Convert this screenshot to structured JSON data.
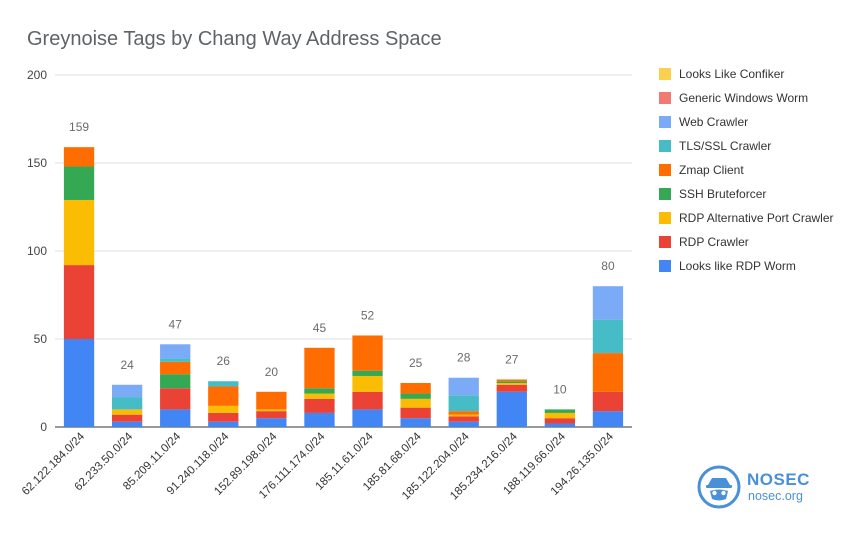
{
  "chart_data": {
    "type": "bar",
    "stacked": true,
    "title": "Greynoise Tags by Chang Way Address Space",
    "categories": [
      "62.122.184.0/24",
      "62.233.50.0/24",
      "85.209.11.0/24",
      "91.240.118.0/24",
      "152.89.198.0/24",
      "176.111.174.0/24",
      "185.11.61.0/24",
      "185.81.68.0/24",
      "185.122.204.0/24",
      "185.234.216.0/24",
      "188.119.66.0/24",
      "194.26.135.0/24"
    ],
    "totals": [
      159,
      24,
      47,
      26,
      20,
      45,
      52,
      25,
      28,
      27,
      10,
      80
    ],
    "ylim": [
      0,
      200
    ],
    "yticks": [
      0,
      50,
      100,
      150,
      200
    ],
    "grid": true,
    "legend_position": "right",
    "series": [
      {
        "name": "Looks like RDP Worm",
        "color": "#4285f4",
        "values": [
          50,
          3,
          10,
          3,
          5,
          8,
          10,
          5,
          3,
          20,
          2,
          9
        ]
      },
      {
        "name": "RDP Crawler",
        "color": "#ea4335",
        "values": [
          42,
          4,
          12,
          5,
          4,
          8,
          10,
          6,
          3,
          4,
          3,
          11
        ]
      },
      {
        "name": "RDP Alternative Port Crawler",
        "color": "#fbbc04",
        "values": [
          37,
          3,
          0,
          4,
          1,
          3,
          9,
          5,
          1,
          1,
          3,
          0
        ]
      },
      {
        "name": "SSH Bruteforcer",
        "color": "#34a853",
        "values": [
          19,
          0,
          8,
          0,
          0,
          3,
          3,
          3,
          0,
          1,
          2,
          0
        ]
      },
      {
        "name": "Zmap Client",
        "color": "#ff6d01",
        "values": [
          11,
          0,
          7,
          11,
          10,
          23,
          20,
          6,
          2,
          1,
          0,
          22
        ]
      },
      {
        "name": "TLS/SSL Crawler",
        "color": "#46bdc6",
        "values": [
          0,
          7,
          2,
          3,
          0,
          0,
          0,
          0,
          9,
          0,
          0,
          19
        ]
      },
      {
        "name": "Web Crawler",
        "color": "#7baaf7",
        "values": [
          0,
          7,
          8,
          0,
          0,
          0,
          0,
          0,
          10,
          0,
          0,
          19
        ]
      },
      {
        "name": "Generic Windows Worm",
        "color": "#f07b72",
        "values": [
          0,
          0,
          0,
          0,
          0,
          0,
          0,
          0,
          0,
          0,
          0,
          0
        ]
      },
      {
        "name": "Looks Like Confiker",
        "color": "#fcd04f",
        "values": [
          0,
          0,
          0,
          0,
          0,
          0,
          0,
          0,
          0,
          0,
          0,
          0
        ]
      }
    ]
  },
  "logo": {
    "name": "NOSEC",
    "domain": "nosec.org"
  }
}
